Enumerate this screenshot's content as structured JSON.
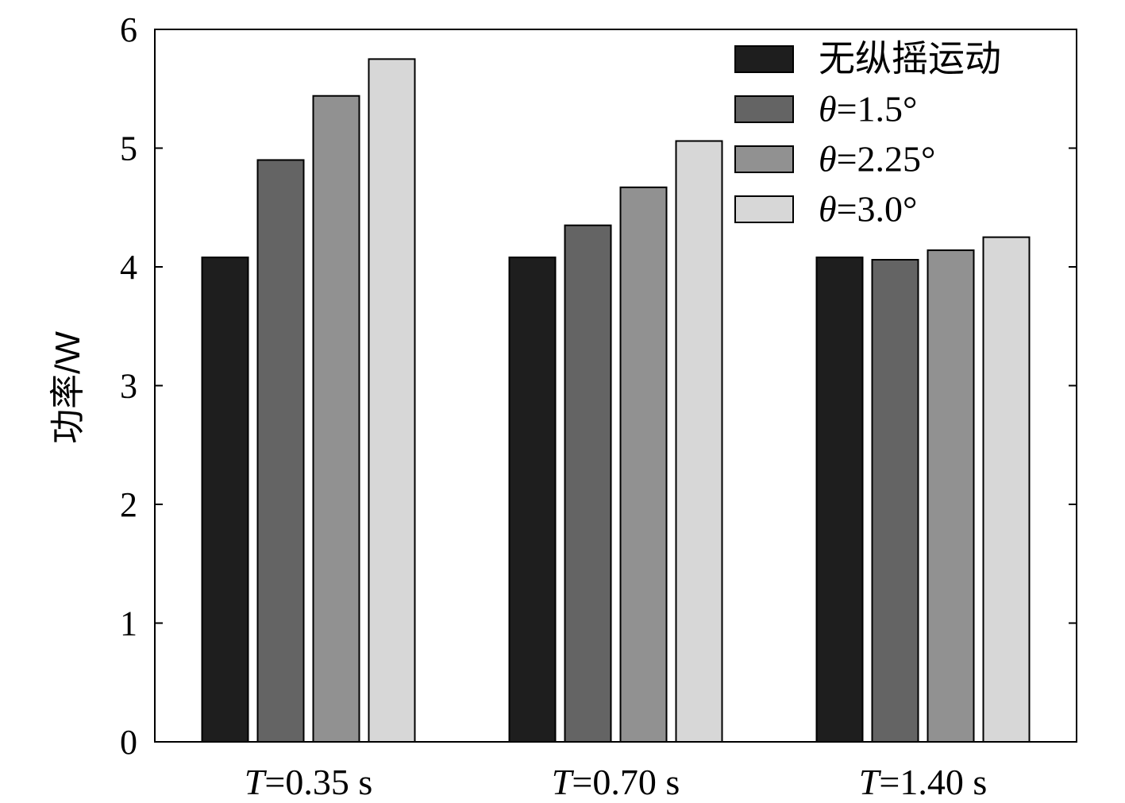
{
  "chart_data": {
    "type": "bar",
    "title": "",
    "xlabel": "",
    "ylabel": "功率/W",
    "ylim": [
      0,
      6
    ],
    "yticks": [
      0,
      1,
      2,
      3,
      4,
      5,
      6
    ],
    "grid": false,
    "legend_position": "top-right",
    "categories": [
      {
        "var": "T",
        "rest": "=0.35 s"
      },
      {
        "var": "T",
        "rest": "=0.70 s"
      },
      {
        "var": "T",
        "rest": "=1.40 s"
      }
    ],
    "series": [
      {
        "name": "无纵摇运动",
        "var": "",
        "rest": "无纵摇运动",
        "color": "#1e1e1e",
        "values": [
          4.08,
          4.08,
          4.08
        ]
      },
      {
        "name": "θ=1.5°",
        "var": "θ",
        "rest": "=1.5°",
        "color": "#646464",
        "values": [
          4.9,
          4.35,
          4.06
        ]
      },
      {
        "name": "θ=2.25°",
        "var": "θ",
        "rest": "=2.25°",
        "color": "#919191",
        "values": [
          5.44,
          4.67,
          4.14
        ]
      },
      {
        "name": "θ=3.0°",
        "var": "θ",
        "rest": "=3.0°",
        "color": "#d7d7d7",
        "values": [
          5.75,
          5.06,
          4.25
        ]
      }
    ]
  }
}
